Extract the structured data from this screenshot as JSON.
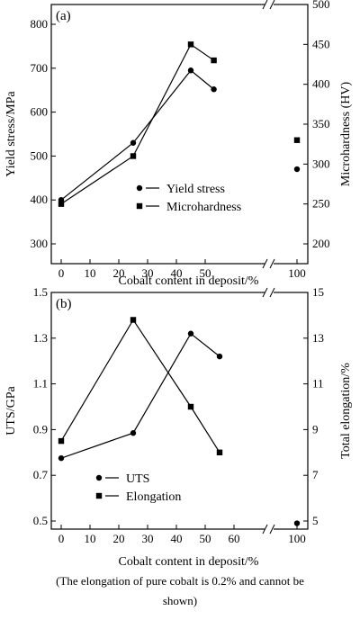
{
  "chart_data": [
    {
      "type": "line",
      "panel_label": "(a)",
      "xlabel": "Cobalt content in deposit/%",
      "ylabel_left": "Yield stress/MPa",
      "ylabel_right": "Microhardness (HV)",
      "x_ticks": [
        "0",
        "10",
        "20",
        "30",
        "40",
        "50",
        "100"
      ],
      "y_left_ticks": [
        "300",
        "400",
        "500",
        "600",
        "700",
        "800"
      ],
      "y_right_ticks": [
        "200",
        "250",
        "300",
        "350",
        "400",
        "450",
        "500"
      ],
      "ylim_left": [
        250,
        850
      ],
      "ylim_right": [
        200,
        500
      ],
      "x_break": "after 60, axis resumes near 100",
      "series": [
        {
          "name": "Yield stress",
          "axis": "left",
          "marker": "circle",
          "x": [
            0,
            25,
            45,
            53
          ],
          "y": [
            400,
            530,
            695,
            652
          ],
          "isolated_point": {
            "x": 100,
            "y": 470
          }
        },
        {
          "name": "Microhardness",
          "axis": "right",
          "marker": "square",
          "x": [
            0,
            25,
            45,
            53
          ],
          "y": [
            250,
            310,
            450,
            430
          ],
          "isolated_point": {
            "x": 100,
            "y": 330
          }
        }
      ],
      "legend_position": "lower-right"
    },
    {
      "type": "line",
      "panel_label": "(b)",
      "xlabel": "Cobalt content in deposit/%",
      "ylabel_left": "UTS/GPa",
      "ylabel_right": "Total elongation/%",
      "x_ticks": [
        "0",
        "10",
        "20",
        "30",
        "40",
        "50",
        "60",
        "100"
      ],
      "y_left_ticks": [
        "0.5",
        "0.7",
        "0.9",
        "1.1",
        "1.3",
        "1.5"
      ],
      "y_right_ticks": [
        "5",
        "7",
        "9",
        "11",
        "13",
        "15"
      ],
      "ylim_left": [
        0.45,
        1.5
      ],
      "ylim_right": [
        4.5,
        15
      ],
      "x_break": "after 60, axis resumes near 100",
      "series": [
        {
          "name": "UTS",
          "axis": "left",
          "marker": "circle",
          "x": [
            0,
            25,
            45,
            55
          ],
          "y": [
            0.775,
            0.885,
            1.32,
            1.22
          ],
          "isolated_point": {
            "x": 100,
            "y": 0.49
          }
        },
        {
          "name": "Elongation",
          "axis": "right",
          "marker": "square",
          "x": [
            0,
            25,
            45,
            55
          ],
          "y": [
            8.5,
            13.8,
            10,
            8
          ]
        }
      ],
      "legend_position": "lower-right"
    }
  ],
  "caption": [
    "(The elongation of pure cobalt is 0.2% and cannot be",
    "shown)"
  ]
}
